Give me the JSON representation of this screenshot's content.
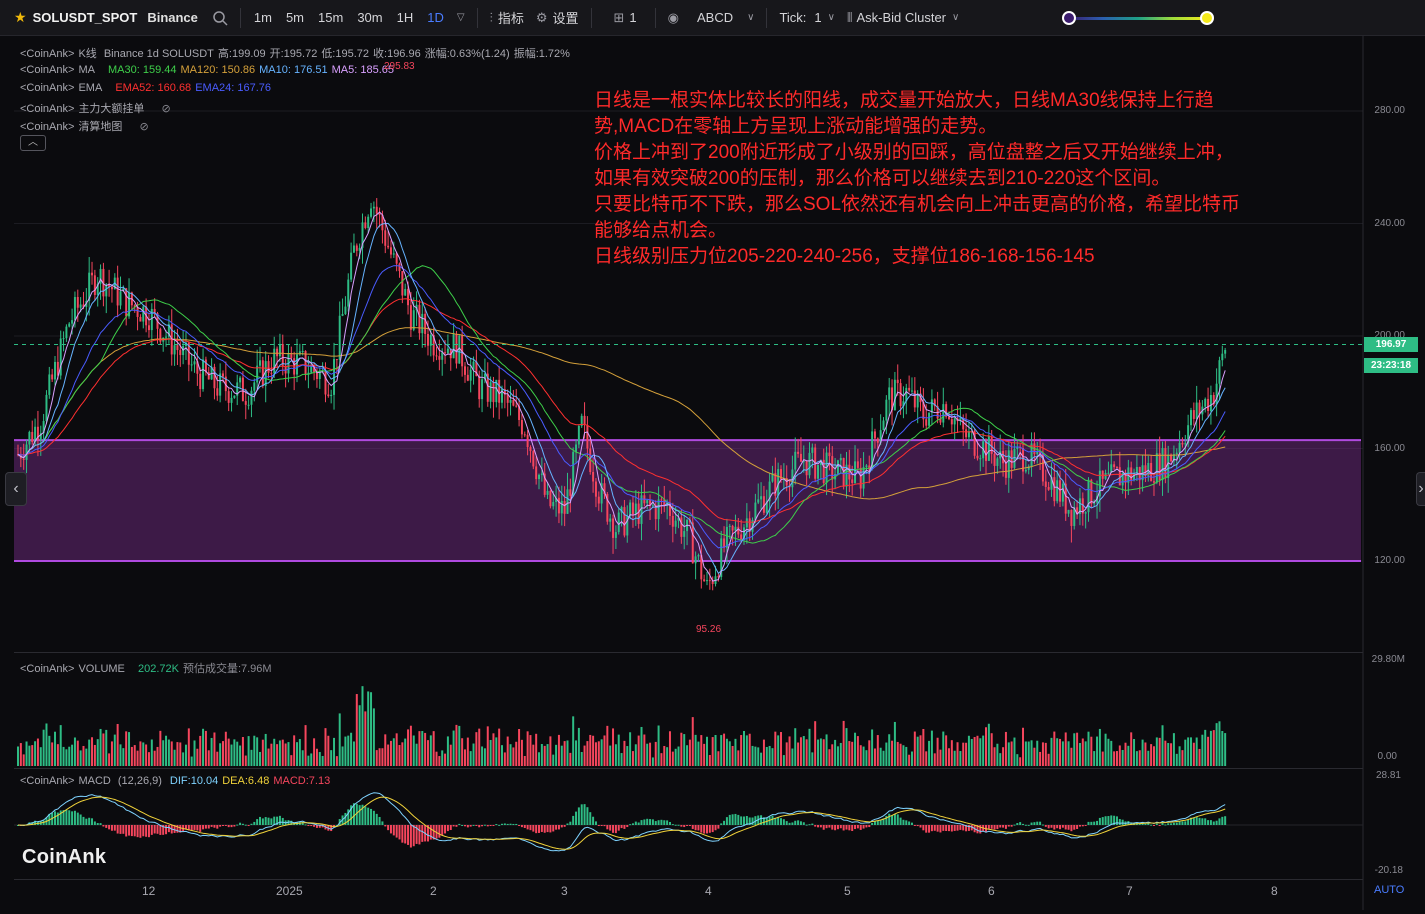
{
  "toolbar": {
    "symbol": "SOLUSDT_SPOT",
    "exchange": "Binance",
    "timeframes": [
      "1m",
      "5m",
      "15m",
      "30m",
      "1H",
      "1D"
    ],
    "active_timeframe": "1D",
    "indicators_label": "指标",
    "settings_label": "设置",
    "layout_label": "1",
    "abcd_label": "ABCD",
    "tick_label": "Tick:",
    "tick_value": "1",
    "cluster_label": "Ask-Bid Cluster"
  },
  "legends": {
    "kline": {
      "prefix": "<CoinAnk>",
      "name": "K线",
      "info": "Binance 1d SOLUSDT",
      "high": "高:199.09",
      "open": "开:195.72",
      "low": "低:195.72",
      "close": "收:196.96",
      "change": "涨幅:0.63%(1.24)",
      "amplitude": "振幅:1.72%"
    },
    "ma": {
      "prefix": "<CoinAnk>",
      "name": "MA",
      "ma30": "MA30: 159.44",
      "ma120": "MA120: 150.86",
      "ma10": "MA10: 176.51",
      "ma5": "MA5: 185.65"
    },
    "ema": {
      "prefix": "<CoinAnk>",
      "name": "EMA",
      "ema52": "EMA52: 160.68",
      "ema24": "EMA24: 167.76"
    },
    "big_orders": {
      "prefix": "<CoinAnk>",
      "name": "主力大额挂单"
    },
    "heatmap": {
      "prefix": "<CoinAnk>",
      "name": "清算地图"
    },
    "volume": {
      "prefix": "<CoinAnk>",
      "name": "VOLUME",
      "value": "202.72K",
      "estimate": "预估成交量:7.96M"
    },
    "macd": {
      "prefix": "<CoinAnk>",
      "name": "MACD",
      "params": "(12,26,9)",
      "dif": "DIF:10.04",
      "dea": "DEA:6.48",
      "macd": "MACD:7.13"
    }
  },
  "annotation": {
    "lines": [
      "日线是一根实体比较长的阳线，成交量开始放大，日线MA30线保持上行趋",
      "势,MACD在零轴上方呈现上涨动能增强的走势。",
      "价格上冲到了200附近形成了小级别的回踩，高位盘整之后又开始继续上冲，",
      "如果有效突破200的压制，那么价格可以继续去到210-220这个区间。",
      "只要比特币不下跌，那么SOL依然还有机会向上冲击更高的价格，希望比特币",
      "能够给点机会。",
      "日线级别压力位205-220-240-256，支撑位186-168-156-145"
    ]
  },
  "price_axis": {
    "labels": [
      "280.00",
      "240.00",
      "200.00",
      "160.00",
      "120.00"
    ],
    "current_price": "196.97",
    "countdown": "23:23:18",
    "low_marker": "95.26",
    "high_marker": "295.83"
  },
  "volume_axis": {
    "top": "29.80M",
    "bottom": "0.00"
  },
  "macd_axis": {
    "top": "28.81",
    "bottom": "-20.18"
  },
  "time_axis": {
    "labels": [
      "12",
      "2025",
      "2",
      "3",
      "4",
      "5",
      "6",
      "7",
      "8"
    ]
  },
  "support_zone": {
    "upper": 163,
    "lower": 120,
    "color": "#7b2d8e"
  },
  "colors": {
    "up": "#2ebd85",
    "down": "#f6465d",
    "ma5": "#d9a0ff",
    "ma10": "#66b3ff",
    "ma30": "#3ecf4a",
    "ma120": "#d4a03a",
    "ema52": "#ff3030",
    "ema24": "#4a5cff",
    "annotation": "#ff2a2a"
  },
  "branding": {
    "logo": "CoinAnk",
    "auto": "AUTO"
  }
}
